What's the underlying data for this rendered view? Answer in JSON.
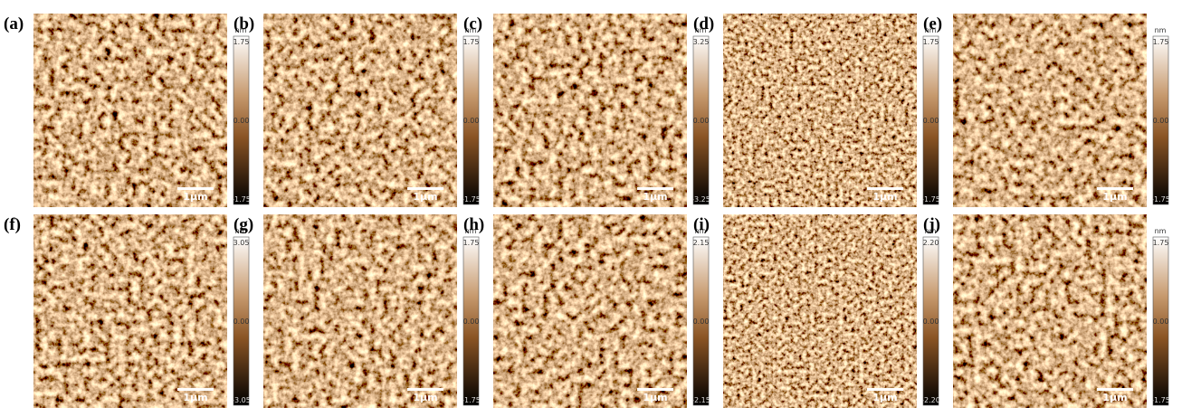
{
  "panels": [
    {
      "label": "(a)",
      "unit": "nm",
      "max": "1.75",
      "mid": "0.00",
      "min": "-1.75",
      "scale": "1μm"
    },
    {
      "label": "(b)",
      "unit": "nm",
      "max": "1.75",
      "mid": "0.00",
      "min": "-1.75",
      "scale": "1μm"
    },
    {
      "label": "(c)",
      "unit": "nm",
      "max": "3.25",
      "mid": "0.00",
      "min": "-3.25",
      "scale": "1μm"
    },
    {
      "label": "(d)",
      "unit": "nm",
      "max": "1.75",
      "mid": "0.00",
      "min": "-1.75",
      "scale": "1μm"
    },
    {
      "label": "(e)",
      "unit": "nm",
      "max": "1.75",
      "mid": "0.00",
      "min": "-1.75",
      "scale": "1μm"
    },
    {
      "label": "(f)",
      "unit": "nm",
      "max": "3.05",
      "mid": "0.00",
      "min": "-3.05",
      "scale": "1μm"
    },
    {
      "label": "(g)",
      "unit": "nm",
      "max": "1.75",
      "mid": "0.00",
      "min": "-1.75",
      "scale": "1μm"
    },
    {
      "label": "(h)",
      "unit": "nm",
      "max": "2.15",
      "mid": "0.00",
      "min": "-2.15",
      "scale": "1μm"
    },
    {
      "label": "(i)",
      "unit": "nm",
      "max": "2.20",
      "mid": "0.00",
      "min": "-2.20",
      "scale": "1μm"
    },
    {
      "label": "(j)",
      "unit": "nm",
      "max": "1.75",
      "mid": "0.00",
      "min": "-1.75",
      "scale": "1μm"
    }
  ]
}
